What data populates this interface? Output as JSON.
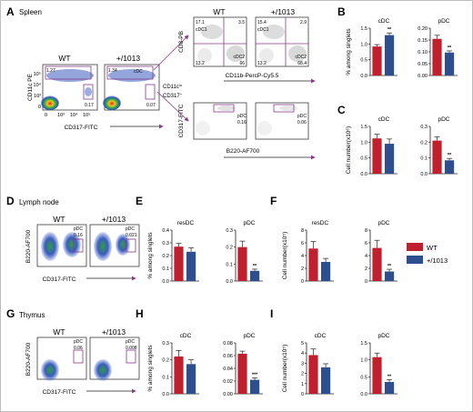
{
  "colors": {
    "wt": "#c0202e",
    "mut": "#2d4f8f",
    "gate": "#8a3a8a",
    "axis": "#222222",
    "arrow": "#8a3a8a"
  },
  "panels": {
    "A": "A",
    "B": "B",
    "C": "C",
    "D": "D",
    "E": "E",
    "F": "F",
    "G": "G",
    "H": "H",
    "I": "I"
  },
  "sections": {
    "spleen": "Spleen",
    "lymph": "Lymph node",
    "thymus": "Thymus"
  },
  "legend": {
    "wt": "WT",
    "mut": "+/1013"
  },
  "spleen": {
    "flow1": {
      "wt_title": "WT",
      "mut_title": "+/1013",
      "y": "CD11c PE",
      "x": "CD317-FITC",
      "wt_gate1": "1.27",
      "wt_gate2": "0.17",
      "mut_gate1": "1.34",
      "mut_gate2": "0.07",
      "mut_cdc": "cDC",
      "side1": "CD11c",
      "side1_sup": "lo",
      "side2": "CD317",
      "side2_sup": "+"
    },
    "flow2": {
      "wt_title": "WT",
      "mut_title": "+/1013",
      "y": "CD8-PB",
      "x": "CD11b-PercP-Cy5.5",
      "wt_cdc1": "cDC1",
      "wt_cdc2": "cDC2",
      "wt_q1": "17.1",
      "wt_q2": "3.5",
      "wt_q3": "13.2",
      "wt_q4": "66",
      "mut_cdc1": "cDC1",
      "mut_cdc2": "cDC2",
      "mut_q1": "15.4",
      "mut_q2": "2.9",
      "mut_q3": "13.2",
      "mut_q4": "68.4"
    },
    "flow3": {
      "y": "CD317-FITC",
      "x": "B220-AF700",
      "wt_pdc": "pDC",
      "wt_val": "0.16",
      "mut_pdc": "pDC",
      "mut_val": "0.06"
    }
  },
  "lymph": {
    "wt_title": "WT",
    "mut_title": "+/1013",
    "y": "B220-AF700",
    "x": "CD317-FITC",
    "wt_pdc": "pDC",
    "wt_val": "0.16",
    "mut_pdc": "pDC",
    "mut_val": "0.021"
  },
  "thymus": {
    "wt_title": "WT",
    "mut_title": "+/1013",
    "y": "B220-AF700",
    "x": "CD317-FITC",
    "wt_pdc": "pDC",
    "wt_val": "0.06",
    "mut_pdc": "pDC",
    "mut_val": "0.008"
  },
  "chart_data": [
    {
      "panel": "B",
      "type": "bar",
      "title": "cDC",
      "ylabel": "% among singlets",
      "ylim": [
        0,
        1.5
      ],
      "yticks": [
        "0.0",
        "0.5",
        "1.0",
        "1.5"
      ],
      "categories": [
        "WT",
        "+/1013"
      ],
      "values": [
        0.92,
        1.28
      ],
      "errors": [
        0.06,
        0.07
      ],
      "sig": "**"
    },
    {
      "panel": "B",
      "type": "bar",
      "title": "pDC",
      "ylabel": "",
      "ylim": [
        0,
        0.2
      ],
      "yticks": [
        "0.00",
        "0.05",
        "0.10",
        "0.15",
        "0.20"
      ],
      "categories": [
        "WT",
        "+/1013"
      ],
      "values": [
        0.155,
        0.097
      ],
      "errors": [
        0.015,
        0.007
      ],
      "sig": "**"
    },
    {
      "panel": "C",
      "type": "bar",
      "title": "cDC",
      "ylabel": "Cell number(x10⁶)",
      "ylim": [
        0,
        1.5
      ],
      "yticks": [
        "0.0",
        "0.5",
        "1.0",
        "1.5"
      ],
      "categories": [
        "WT",
        "+/1013"
      ],
      "values": [
        1.12,
        0.95
      ],
      "errors": [
        0.13,
        0.15
      ],
      "sig": ""
    },
    {
      "panel": "C",
      "type": "bar",
      "title": "pDC",
      "ylabel": "",
      "ylim": [
        0,
        0.3
      ],
      "yticks": [
        "0.0",
        "0.1",
        "0.2",
        "0.3"
      ],
      "categories": [
        "WT",
        "+/1013"
      ],
      "values": [
        0.21,
        0.085
      ],
      "errors": [
        0.025,
        0.012
      ],
      "sig": "**"
    },
    {
      "panel": "E",
      "type": "bar",
      "title": "resDC",
      "ylabel": "% among singlets",
      "ylim": [
        0,
        0.4
      ],
      "yticks": [
        "0.0",
        "0.1",
        "0.2",
        "0.3",
        "0.4"
      ],
      "categories": [
        "WT",
        "+/1013"
      ],
      "values": [
        0.27,
        0.23
      ],
      "errors": [
        0.025,
        0.03
      ],
      "sig": ""
    },
    {
      "panel": "E",
      "type": "bar",
      "title": "pDC",
      "ylabel": "",
      "ylim": [
        0,
        0.3
      ],
      "yticks": [
        "0.0",
        "0.1",
        "0.2",
        "0.3"
      ],
      "categories": [
        "WT",
        "+/1013"
      ],
      "values": [
        0.2,
        0.06
      ],
      "errors": [
        0.035,
        0.01
      ],
      "sig": "**"
    },
    {
      "panel": "F",
      "type": "bar",
      "title": "resDC",
      "ylabel": "Cell number(x10⁵)",
      "ylim": [
        0,
        8
      ],
      "yticks": [
        "0",
        "2",
        "4",
        "6",
        "8"
      ],
      "categories": [
        "WT",
        "+/1013"
      ],
      "values": [
        5.1,
        3.0
      ],
      "errors": [
        1.1,
        0.55
      ],
      "sig": ""
    },
    {
      "panel": "F",
      "type": "bar",
      "title": "pDC",
      "ylabel": "",
      "ylim": [
        0,
        8
      ],
      "yticks": [
        "0",
        "2",
        "4",
        "6",
        "8"
      ],
      "categories": [
        "WT",
        "+/1013"
      ],
      "values": [
        5.2,
        1.5
      ],
      "errors": [
        1.2,
        0.35
      ],
      "sig": "**"
    },
    {
      "panel": "H",
      "type": "bar",
      "title": "cDC",
      "ylabel": "% among singlets",
      "ylim": [
        0,
        0.3
      ],
      "yticks": [
        "0.0",
        "0.1",
        "0.2",
        "0.3"
      ],
      "categories": [
        "WT",
        "+/1013"
      ],
      "values": [
        0.22,
        0.175
      ],
      "errors": [
        0.035,
        0.025
      ],
      "sig": ""
    },
    {
      "panel": "H",
      "type": "bar",
      "title": "pDC",
      "ylabel": "",
      "ylim": [
        0,
        0.08
      ],
      "yticks": [
        "0.00",
        "0.02",
        "0.04",
        "0.06",
        "0.08"
      ],
      "categories": [
        "WT",
        "+/1013"
      ],
      "values": [
        0.063,
        0.022
      ],
      "errors": [
        0.004,
        0.003
      ],
      "sig": "***"
    },
    {
      "panel": "I",
      "type": "bar",
      "title": "cDC",
      "ylabel": "Cell number(x10⁵)",
      "ylim": [
        0,
        5
      ],
      "yticks": [
        "0",
        "1",
        "2",
        "3",
        "4",
        "5"
      ],
      "categories": [
        "WT",
        "+/1013"
      ],
      "values": [
        3.8,
        2.6
      ],
      "errors": [
        0.6,
        0.35
      ],
      "sig": ""
    },
    {
      "panel": "I",
      "type": "bar",
      "title": "pDC",
      "ylabel": "",
      "ylim": [
        0,
        1.5
      ],
      "yticks": [
        "0.0",
        "0.5",
        "1.0",
        "1.5"
      ],
      "categories": [
        "WT",
        "+/1013"
      ],
      "values": [
        1.08,
        0.35
      ],
      "errors": [
        0.12,
        0.07
      ],
      "sig": "**"
    }
  ]
}
